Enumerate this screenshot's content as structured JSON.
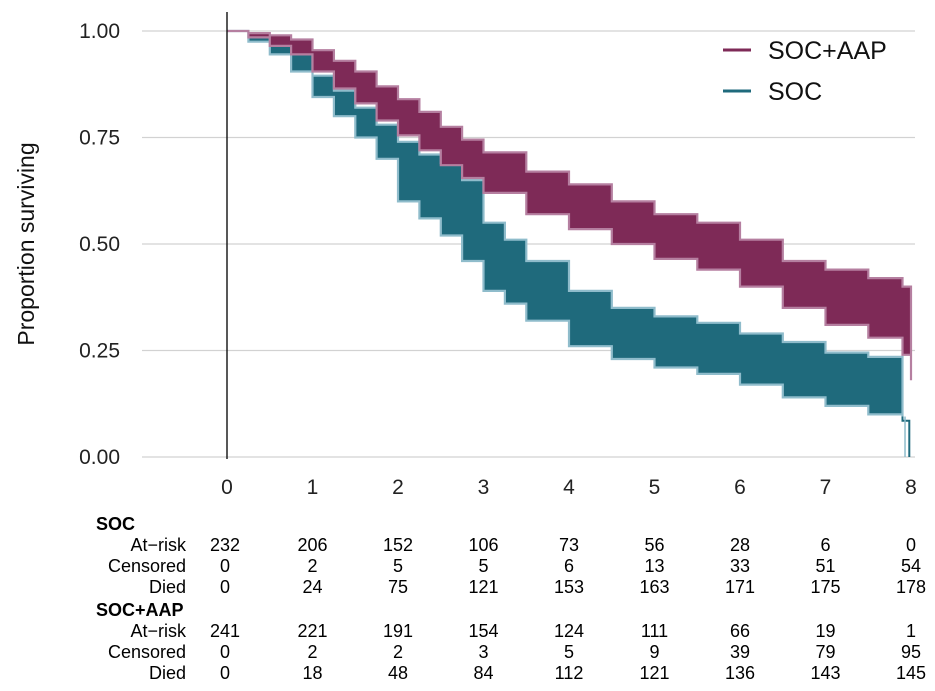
{
  "chart_data": {
    "type": "line",
    "subtype": "kaplan-meier survival with confidence bands",
    "title": "",
    "xlabel": "",
    "ylabel": "Proportion surviving",
    "xlim": [
      0,
      8
    ],
    "ylim": [
      0,
      1
    ],
    "x_ticks": [
      "0",
      "1",
      "2",
      "3",
      "4",
      "5",
      "6",
      "7",
      "8"
    ],
    "y_ticks": [
      "0.00",
      "0.25",
      "0.50",
      "0.75",
      "1.00"
    ],
    "grid": "horizontal",
    "legend_position": "top-right",
    "series": [
      {
        "name": "SOC+AAP",
        "color": "#7e2a57",
        "x": [
          0,
          0.25,
          0.5,
          0.75,
          1,
          1.25,
          1.5,
          1.75,
          2,
          2.25,
          2.5,
          2.75,
          3,
          3.5,
          4,
          4.5,
          5,
          5.5,
          6,
          6.5,
          7,
          7.5,
          7.9,
          8
        ],
        "upper": [
          1.0,
          0.995,
          0.99,
          0.98,
          0.955,
          0.93,
          0.905,
          0.87,
          0.84,
          0.81,
          0.775,
          0.745,
          0.715,
          0.67,
          0.64,
          0.6,
          0.57,
          0.55,
          0.51,
          0.46,
          0.44,
          0.42,
          0.4,
          0.39
        ],
        "lower": [
          1.0,
          0.985,
          0.965,
          0.945,
          0.905,
          0.865,
          0.83,
          0.79,
          0.755,
          0.72,
          0.685,
          0.655,
          0.62,
          0.57,
          0.535,
          0.5,
          0.465,
          0.44,
          0.4,
          0.35,
          0.31,
          0.28,
          0.24,
          0.18
        ]
      },
      {
        "name": "SOC",
        "color": "#1f6a7c",
        "x": [
          0,
          0.25,
          0.5,
          0.75,
          1,
          1.25,
          1.5,
          1.75,
          2,
          2.25,
          2.5,
          2.75,
          3,
          3.25,
          3.5,
          4,
          4.5,
          5,
          5.5,
          6,
          6.5,
          7,
          7.5,
          7.9
        ],
        "upper": [
          1.0,
          0.99,
          0.975,
          0.945,
          0.895,
          0.86,
          0.82,
          0.78,
          0.74,
          0.71,
          0.69,
          0.65,
          0.55,
          0.51,
          0.46,
          0.39,
          0.35,
          0.33,
          0.315,
          0.29,
          0.27,
          0.245,
          0.235,
          0.235
        ],
        "lower": [
          1.0,
          0.975,
          0.945,
          0.905,
          0.845,
          0.8,
          0.75,
          0.7,
          0.6,
          0.56,
          0.52,
          0.46,
          0.39,
          0.36,
          0.32,
          0.26,
          0.23,
          0.21,
          0.195,
          0.17,
          0.14,
          0.12,
          0.1,
          0.095
        ],
        "tail": {
          "x": [
            7.9,
            7.9,
            7.98,
            7.98
          ],
          "y": [
            0.095,
            0.085,
            0.085,
            0.0
          ]
        }
      }
    ],
    "risk_table": {
      "groups": [
        {
          "name": "SOC",
          "rows": [
            {
              "label": "At−risk",
              "values": [
                "232",
                "206",
                "152",
                "106",
                "73",
                "56",
                "28",
                "6",
                "0"
              ]
            },
            {
              "label": "Censored",
              "values": [
                "0",
                "2",
                "5",
                "5",
                "6",
                "13",
                "33",
                "51",
                "54"
              ]
            },
            {
              "label": "Died",
              "values": [
                "0",
                "24",
                "75",
                "121",
                "153",
                "163",
                "171",
                "175",
                "178"
              ]
            }
          ]
        },
        {
          "name": "SOC+AAP",
          "rows": [
            {
              "label": "At−risk",
              "values": [
                "241",
                "221",
                "191",
                "154",
                "124",
                "111",
                "66",
                "19",
                "1"
              ]
            },
            {
              "label": "Censored",
              "values": [
                "0",
                "2",
                "2",
                "3",
                "5",
                "9",
                "39",
                "79",
                "95"
              ]
            },
            {
              "label": "Died",
              "values": [
                "0",
                "18",
                "48",
                "84",
                "112",
                "121",
                "136",
                "143",
                "145"
              ]
            }
          ]
        }
      ]
    }
  }
}
